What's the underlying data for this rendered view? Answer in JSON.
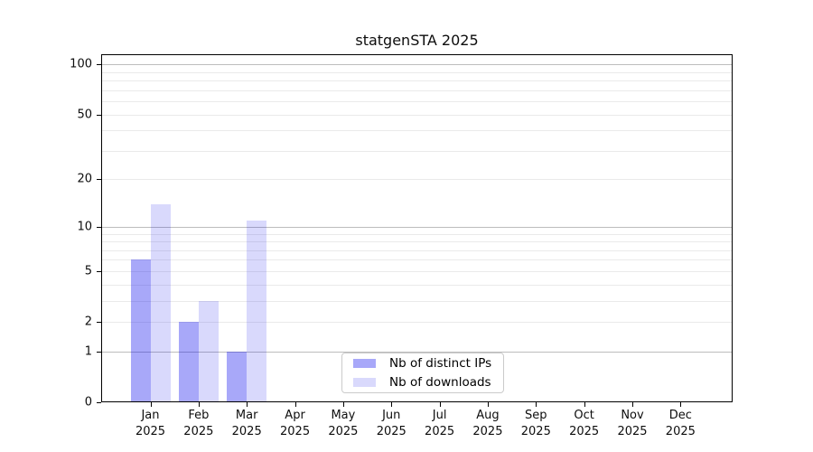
{
  "chart_data": {
    "type": "bar",
    "title": "statgenSTA 2025",
    "categories": [
      {
        "month": "Jan",
        "year": "2025"
      },
      {
        "month": "Feb",
        "year": "2025"
      },
      {
        "month": "Mar",
        "year": "2025"
      },
      {
        "month": "Apr",
        "year": "2025"
      },
      {
        "month": "May",
        "year": "2025"
      },
      {
        "month": "Jun",
        "year": "2025"
      },
      {
        "month": "Jul",
        "year": "2025"
      },
      {
        "month": "Aug",
        "year": "2025"
      },
      {
        "month": "Sep",
        "year": "2025"
      },
      {
        "month": "Oct",
        "year": "2025"
      },
      {
        "month": "Nov",
        "year": "2025"
      },
      {
        "month": "Dec",
        "year": "2025"
      }
    ],
    "series": [
      {
        "name": "Nb of distinct IPs",
        "color": "rgba(0,0,238,0.34)",
        "values": [
          6,
          2,
          1,
          0,
          0,
          0,
          0,
          0,
          0,
          0,
          0,
          0
        ]
      },
      {
        "name": "Nb of downloads",
        "color": "rgba(0,0,238,0.15)",
        "values": [
          14,
          3,
          11,
          0,
          0,
          0,
          0,
          0,
          0,
          0,
          0,
          0
        ]
      }
    ],
    "yscale": "log1p",
    "ylim": [
      0,
      115
    ],
    "yticks": [
      100,
      50,
      20,
      10,
      5,
      2,
      1,
      0
    ],
    "grid": {
      "major_values": [
        1,
        10,
        100
      ],
      "minor_values": [
        2,
        3,
        4,
        5,
        6,
        7,
        8,
        9,
        20,
        30,
        40,
        50,
        60,
        70,
        80,
        90
      ],
      "major_color": "#bdbdbd",
      "minor_color": "#eaeaea"
    },
    "legend": {
      "position": "lower center",
      "border_color": "#cbcbcb"
    },
    "xlabel": "",
    "ylabel": ""
  }
}
